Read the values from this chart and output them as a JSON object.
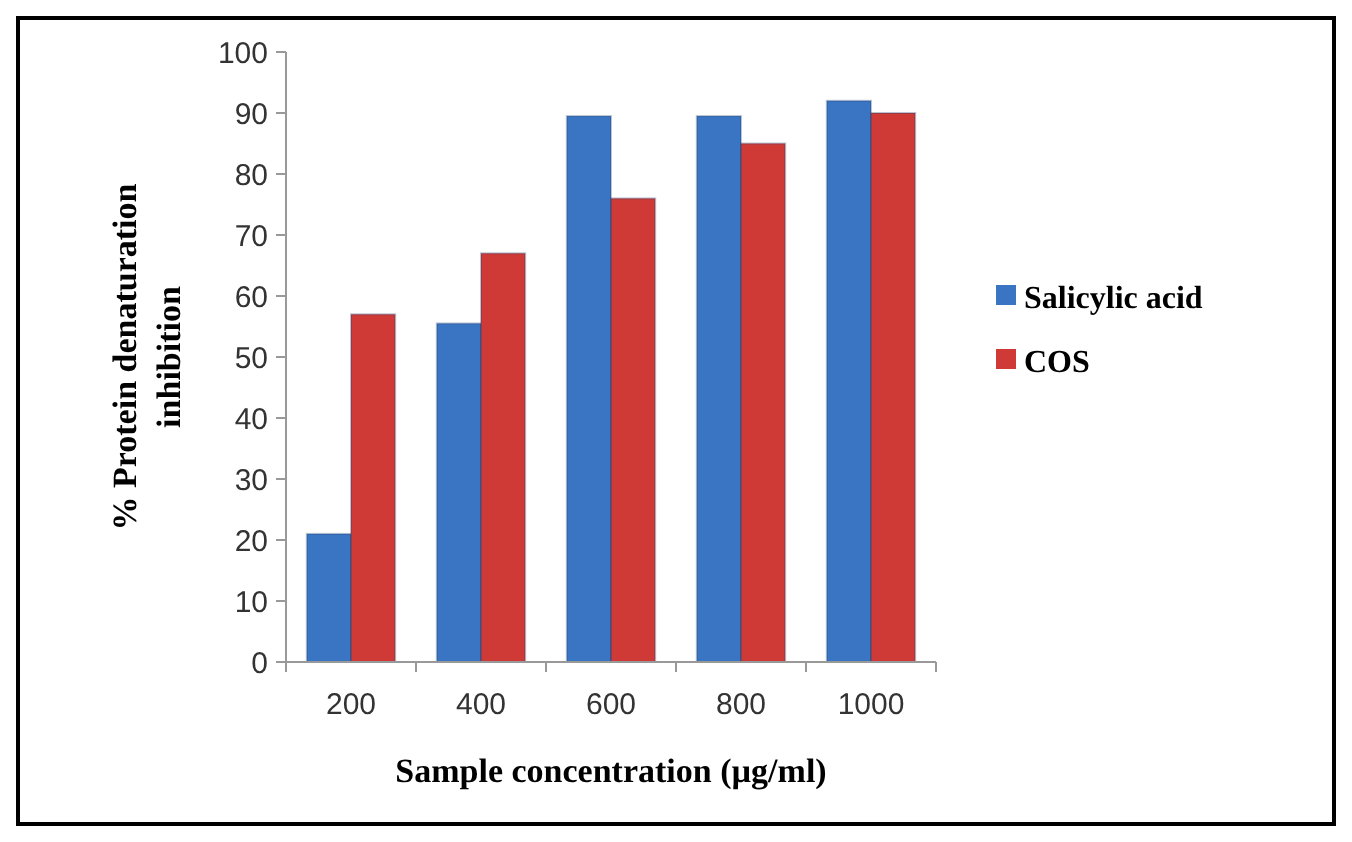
{
  "chart_data": {
    "type": "bar",
    "xlabel": "Sample concentration (µg/ml)",
    "ylabel": "% Protein denaturation inhibition",
    "categories": [
      "200",
      "400",
      "600",
      "800",
      "1000"
    ],
    "series": [
      {
        "name": "Salicylic acid",
        "color": "#3a75c4",
        "values": [
          21,
          55.5,
          89.5,
          89.5,
          92
        ]
      },
      {
        "name": "COS",
        "color": "#d03a36",
        "values": [
          57,
          67,
          76,
          85,
          90
        ]
      }
    ],
    "ylim": [
      0,
      100
    ],
    "yticks": [
      0,
      10,
      20,
      30,
      40,
      50,
      60,
      70,
      80,
      90,
      100
    ],
    "grid": false,
    "legend": "right"
  }
}
